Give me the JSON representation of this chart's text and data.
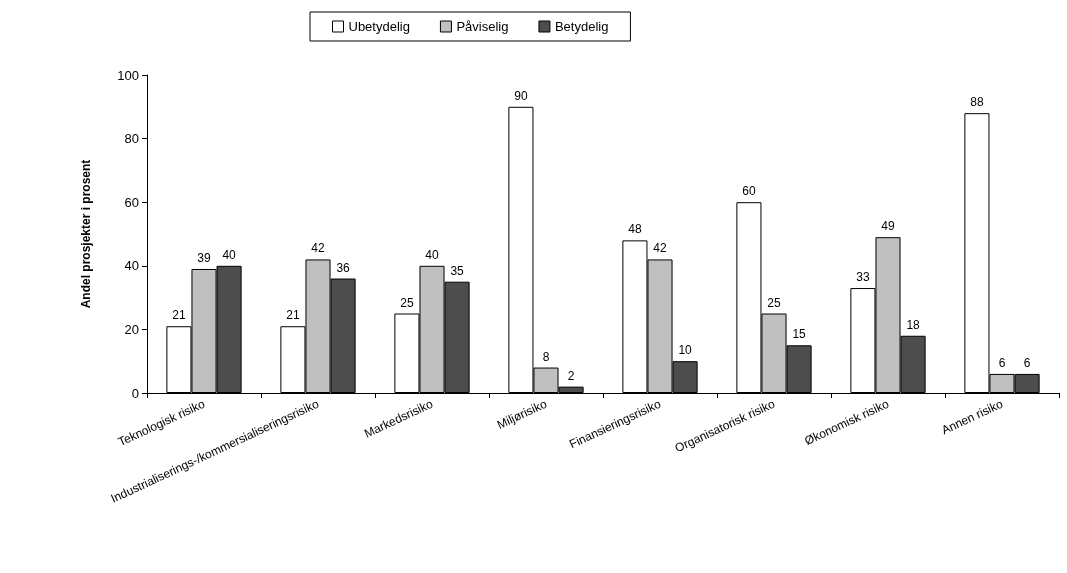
{
  "chart_data": {
    "type": "bar",
    "ylabel": "Andel prosjekter i prosent",
    "categories": [
      "Teknologisk risiko",
      "Industrialiserings-/kommersialiseringsrisiko",
      "Markedsrisiko",
      "Miljørisiko",
      "Finansieringsrisiko",
      "Organisatorisk risiko",
      "Økonomisk risiko",
      "Annen risiko"
    ],
    "series": [
      {
        "name": "Ubetydelig",
        "color": "#ffffff",
        "values": [
          21,
          21,
          25,
          90,
          48,
          60,
          33,
          88
        ]
      },
      {
        "name": "Påviselig",
        "color": "#c0c0c0",
        "values": [
          39,
          42,
          40,
          8,
          42,
          25,
          49,
          6
        ]
      },
      {
        "name": "Betydelig",
        "color": "#4d4d4d",
        "values": [
          40,
          36,
          35,
          2,
          10,
          15,
          18,
          6
        ]
      }
    ],
    "ylim": [
      0,
      100
    ],
    "yticks": [
      0,
      20,
      40,
      60,
      80,
      100
    ],
    "grid": false,
    "legend": "top",
    "data_labels": true
  }
}
